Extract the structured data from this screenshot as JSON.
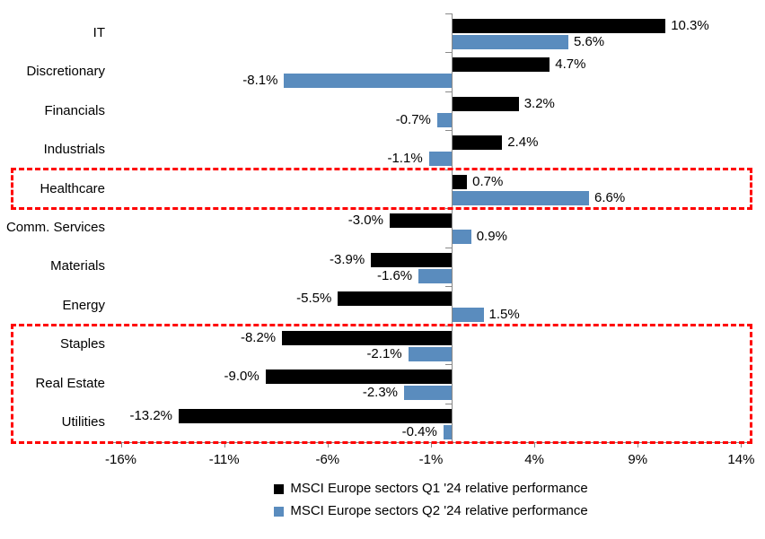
{
  "chart_data": {
    "type": "bar",
    "orientation": "horizontal",
    "title": "",
    "categories": [
      "IT",
      "Discretionary",
      "Financials",
      "Industrials",
      "Healthcare",
      "Comm. Services",
      "Materials",
      "Energy",
      "Staples",
      "Real Estate",
      "Utilities"
    ],
    "series": [
      {
        "name": "MSCI Europe sectors Q1 '24 relative performance",
        "color": "#000000",
        "values": [
          10.3,
          4.7,
          3.2,
          2.4,
          0.7,
          -3.0,
          -3.9,
          -5.5,
          -8.2,
          -9.0,
          -13.2
        ],
        "labels": [
          "10.3%",
          "4.7%",
          "3.2%",
          "2.4%",
          "0.7%",
          "-3.0%",
          "-3.9%",
          "-5.5%",
          "-8.2%",
          "-9.0%",
          "-13.2%"
        ]
      },
      {
        "name": "MSCI Europe sectors Q2 '24 relative performance",
        "color": "#5A8CBE",
        "values": [
          5.6,
          -8.1,
          -0.7,
          -1.1,
          6.6,
          0.9,
          -1.6,
          1.5,
          -2.1,
          -2.3,
          -0.4
        ],
        "labels": [
          "5.6%",
          "-8.1%",
          "-0.7%",
          "-1.1%",
          "6.6%",
          "0.9%",
          "-1.6%",
          "1.5%",
          "-2.1%",
          "-2.3%",
          "-0.4%"
        ]
      }
    ],
    "xlabel": "",
    "ylabel": "",
    "xticks": [
      -16,
      -11,
      -6,
      -1,
      4,
      9,
      14
    ],
    "xtick_labels": [
      "-16%",
      "-11%",
      "-6%",
      "-1%",
      "4%",
      "9%",
      "14%"
    ],
    "xlim": [
      -16.5,
      14.5
    ],
    "grid": false,
    "legend_position": "bottom",
    "axis_color": "#898989",
    "highlight_color": "#ff0000",
    "highlight_boxes": [
      {
        "from_category": "Healthcare",
        "to_category": "Healthcare"
      },
      {
        "from_category": "Staples",
        "to_category": "Utilities"
      }
    ]
  }
}
